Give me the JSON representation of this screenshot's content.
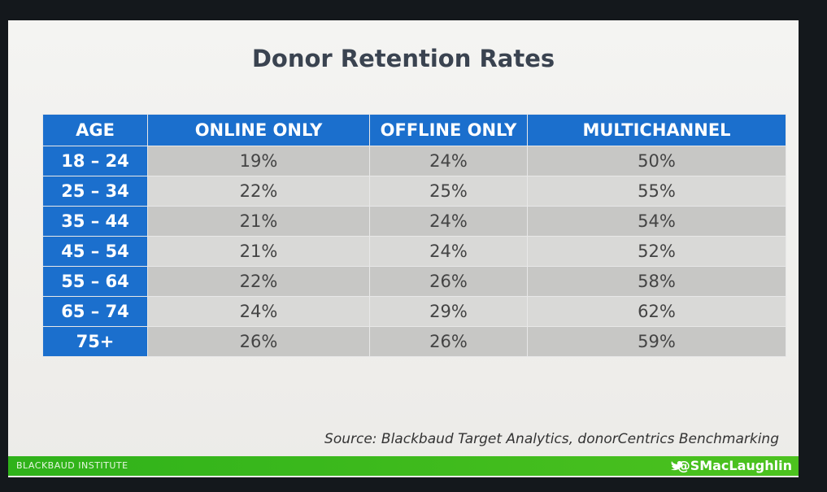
{
  "title": "Donor Retention Rates",
  "table": {
    "headers": [
      "AGE",
      "ONLINE ONLY",
      "OFFLINE ONLY",
      "MULTICHANNEL"
    ],
    "rows": [
      [
        "18 – 24",
        "19%",
        "24%",
        "50%"
      ],
      [
        "25 – 34",
        "22%",
        "25%",
        "55%"
      ],
      [
        "35 – 44",
        "21%",
        "24%",
        "54%"
      ],
      [
        "45 – 54",
        "21%",
        "24%",
        "52%"
      ],
      [
        "55 – 64",
        "22%",
        "26%",
        "58%"
      ],
      [
        "65 – 74",
        "24%",
        "29%",
        "62%"
      ],
      [
        "75+",
        "26%",
        "26%",
        "59%"
      ]
    ]
  },
  "source": "Source: Blackbaud Target Analytics, donorCentrics Benchmarking",
  "footer": {
    "left": "BLACKBAUD INSTITUTE",
    "right": "@SMacLaughlin"
  }
}
